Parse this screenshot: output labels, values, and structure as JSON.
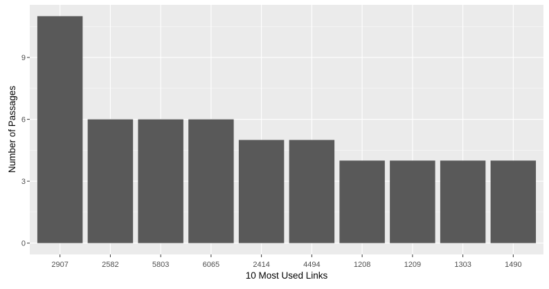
{
  "chart_data": {
    "type": "bar",
    "xlabel": "10 Most Used Links",
    "ylabel": "Number of Passages",
    "categories": [
      "2907",
      "2582",
      "5803",
      "6065",
      "2414",
      "4494",
      "1208",
      "1209",
      "1303",
      "1490"
    ],
    "values": [
      11,
      6,
      6,
      6,
      5,
      5,
      4,
      4,
      4,
      4
    ],
    "yticks": [
      0,
      3,
      6,
      9
    ],
    "ylim": [
      -0.55,
      11.55
    ],
    "grid": true,
    "colors": {
      "panel": "#EBEBEB",
      "grid_major": "#FFFFFF",
      "bar": "#595959",
      "axis_text": "#4D4D4D",
      "title_text": "#000000"
    }
  }
}
